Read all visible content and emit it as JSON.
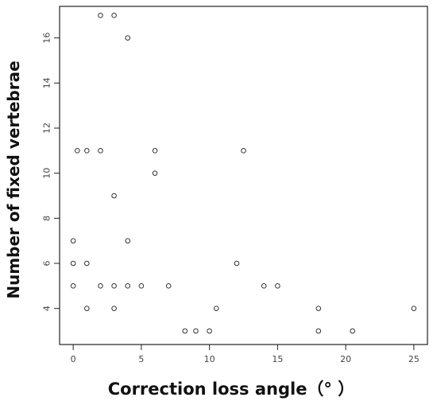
{
  "chart_data": {
    "type": "scatter",
    "title": "",
    "xlabel": "Correction loss angle（°  ）",
    "ylabel": "Number of fixed vertebrae",
    "xlim": [
      -1.0,
      26.0
    ],
    "ylim": [
      2.4,
      17.4
    ],
    "xticks": [
      0,
      5,
      10,
      15,
      20,
      25
    ],
    "yticks": [
      4,
      6,
      8,
      10,
      12,
      14,
      16
    ],
    "grid": false,
    "legend": "none",
    "points": [
      {
        "x": 0,
        "y": 7
      },
      {
        "x": 0,
        "y": 6
      },
      {
        "x": 0,
        "y": 5
      },
      {
        "x": 0.3,
        "y": 11
      },
      {
        "x": 1,
        "y": 11
      },
      {
        "x": 1,
        "y": 6
      },
      {
        "x": 1,
        "y": 4
      },
      {
        "x": 2,
        "y": 17
      },
      {
        "x": 2,
        "y": 11
      },
      {
        "x": 2,
        "y": 5
      },
      {
        "x": 3,
        "y": 17
      },
      {
        "x": 3,
        "y": 9
      },
      {
        "x": 3,
        "y": 5
      },
      {
        "x": 3,
        "y": 4
      },
      {
        "x": 4,
        "y": 16
      },
      {
        "x": 4,
        "y": 7
      },
      {
        "x": 4,
        "y": 5
      },
      {
        "x": 5,
        "y": 5
      },
      {
        "x": 6,
        "y": 11
      },
      {
        "x": 6,
        "y": 10
      },
      {
        "x": 7,
        "y": 5
      },
      {
        "x": 8.2,
        "y": 3
      },
      {
        "x": 9,
        "y": 3
      },
      {
        "x": 10,
        "y": 3
      },
      {
        "x": 10.5,
        "y": 4
      },
      {
        "x": 12,
        "y": 6
      },
      {
        "x": 12.5,
        "y": 11
      },
      {
        "x": 14,
        "y": 5
      },
      {
        "x": 15,
        "y": 5
      },
      {
        "x": 18,
        "y": 4
      },
      {
        "x": 18,
        "y": 3
      },
      {
        "x": 20.5,
        "y": 3
      },
      {
        "x": 25,
        "y": 4
      }
    ]
  }
}
